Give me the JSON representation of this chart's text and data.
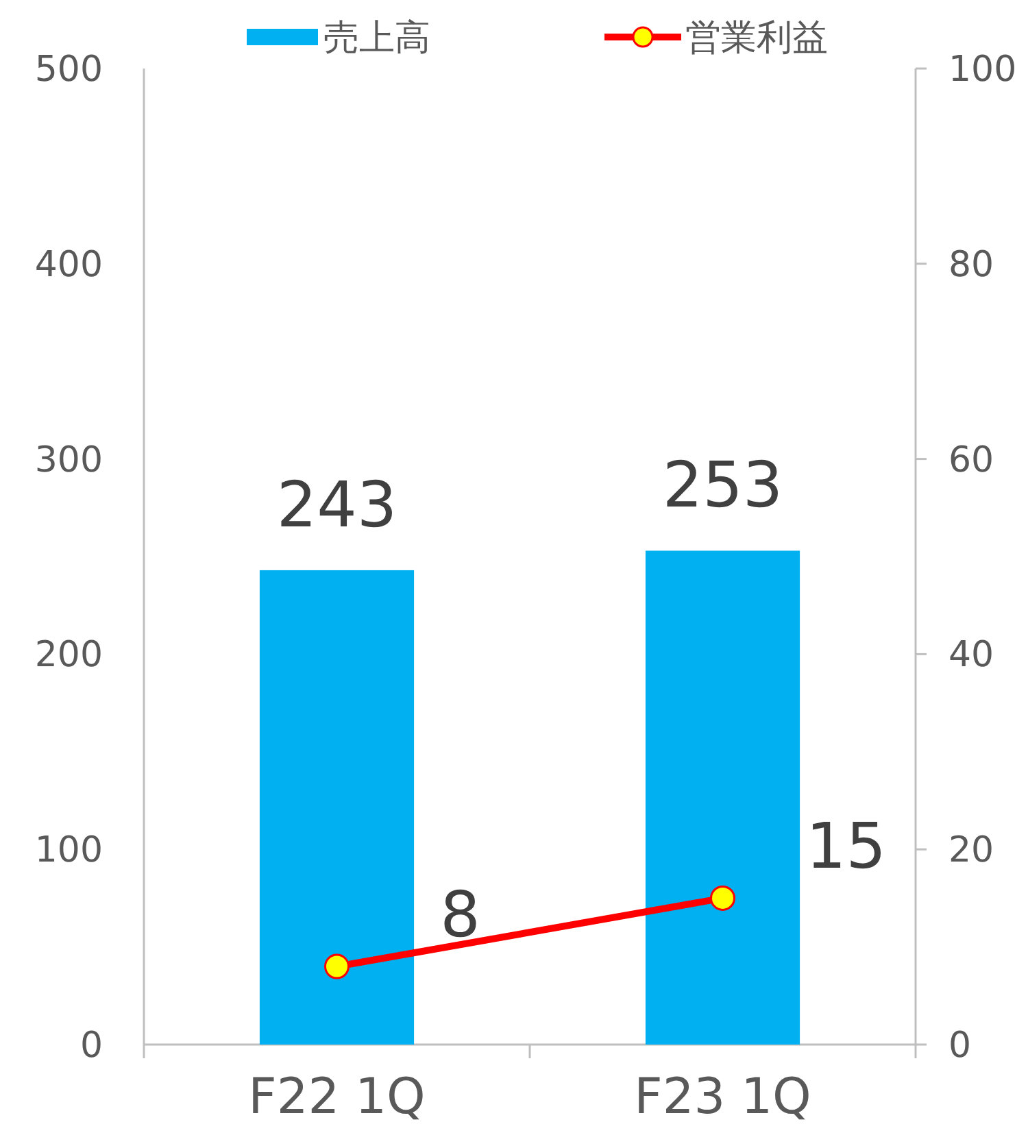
{
  "chart_data": {
    "type": "bar",
    "categories": [
      "F22 1Q",
      "F23 1Q"
    ],
    "series": [
      {
        "name": "売上高",
        "color": "#00b0f0",
        "values": [
          243,
          253
        ]
      },
      {
        "name": "営業利益",
        "type": "line",
        "axis": "y2",
        "color": "#ff0000",
        "values": [
          8,
          15
        ]
      }
    ],
    "ylim": [
      0,
      500
    ],
    "yticks": [
      0,
      100,
      200,
      300,
      400,
      500
    ],
    "y2lim": [
      0,
      100
    ],
    "y2ticks": [
      0,
      20,
      40,
      60,
      80,
      100
    ],
    "data_labels": true,
    "legend": "top",
    "marker": "circle",
    "grid": false
  }
}
